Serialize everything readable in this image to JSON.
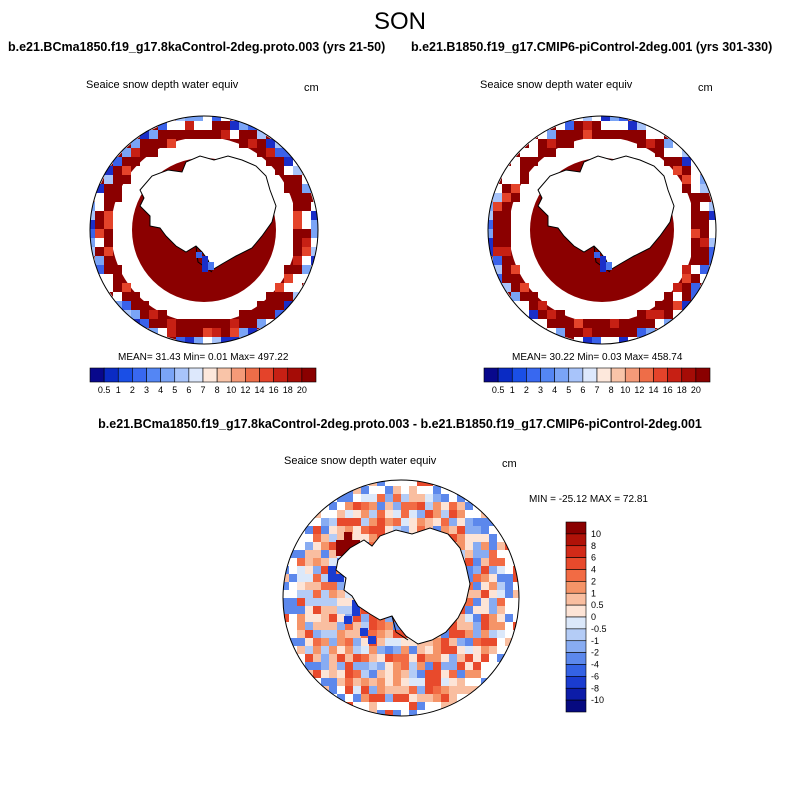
{
  "season": "SON",
  "panels": {
    "left": {
      "case_title": "b.e21.BCma1850.f19_g17.8kaControl-2deg.proto.003 (yrs 21-50)",
      "variable": "Seaice snow depth water equiv",
      "units": "cm",
      "stats": {
        "mean": "31.43",
        "min": "0.01",
        "max": "497.22"
      },
      "stats_text": "MEAN=  31.43   Min=   0.01   Max= 497.22"
    },
    "right": {
      "case_title": "b.e21.B1850.f19_g17.CMIP6-piControl-2deg.001 (yrs 301-330)",
      "variable": "Seaice snow depth water equiv",
      "units": "cm",
      "stats": {
        "mean": "30.22",
        "min": "0.03",
        "max": "458.74"
      },
      "stats_text": "MEAN=  30.22   Min=   0.03   Max= 458.74"
    },
    "diff": {
      "case_title": "b.e21.BCma1850.f19_g17.8kaControl-2deg.proto.003 - b.e21.B1850.f19_g17.CMIP6-piControl-2deg.001",
      "variable": "Seaice snow depth water equiv",
      "units": "cm",
      "stats_text": "MIN = -25.12 MAX =  72.81"
    }
  },
  "colorbar_abs": {
    "labels": [
      "0.5",
      "1",
      "2",
      "3",
      "4",
      "5",
      "6",
      "7",
      "8",
      "10",
      "12",
      "14",
      "16",
      "18",
      "20"
    ],
    "colors": [
      "#08088c",
      "#0a2bc4",
      "#1a4fe6",
      "#3868f0",
      "#5486f4",
      "#7aa4f6",
      "#a8c4fa",
      "#dde8fc",
      "#fde8dc",
      "#f9c4a8",
      "#f59a78",
      "#ee6d48",
      "#e4432a",
      "#c72014",
      "#a50c06",
      "#8a0000"
    ]
  },
  "colorbar_diff": {
    "labels": [
      "10",
      "8",
      "6",
      "4",
      "2",
      "1",
      "0.5",
      "0",
      "-0.5",
      "-1",
      "-2",
      "-4",
      "-6",
      "-8",
      "-10"
    ],
    "colors": [
      "#8a0000",
      "#b01208",
      "#d22a18",
      "#e84a2c",
      "#f26b44",
      "#f59468",
      "#f9bea0",
      "#fde4d6",
      "#dbe8fa",
      "#b4ccf6",
      "#88acf2",
      "#5c88ec",
      "#3462e4",
      "#1a3cd0",
      "#0c1ca8",
      "#060a80"
    ]
  },
  "map_colors": {
    "ice_dark": "#8b0000",
    "ocean": "#ffffff",
    "land": "#ffffff"
  }
}
